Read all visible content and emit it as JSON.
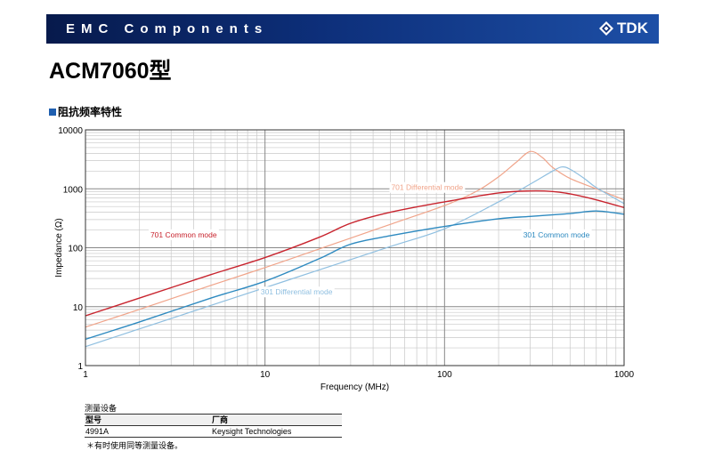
{
  "header": {
    "banner_title": "EMC Components",
    "logo_text": "TDK",
    "logo_icon": "tdk-diamond-logo-icon"
  },
  "page_title": "ACM7060型",
  "section_title": "阻抗频率特性",
  "colors": {
    "banner": "#0d2f7a",
    "701_common": "#c8242e",
    "701_differential": "#f0a48a",
    "301_common": "#2e8ac0",
    "301_differential": "#8fbfe0"
  },
  "chart_data": {
    "type": "line",
    "xlabel": "Frequency (MHz)",
    "ylabel": "Impedance (Ω)",
    "xscale": "log",
    "yscale": "log",
    "xlim": [
      1,
      1000
    ],
    "ylim": [
      1,
      10000
    ],
    "grid": true,
    "x_ticks": [
      "1",
      "10",
      "100",
      "1000"
    ],
    "y_ticks": [
      "1",
      "10",
      "100",
      "1000",
      "10000"
    ],
    "series": [
      {
        "name": "701 Common mode",
        "color": "#c8242e",
        "x": [
          1,
          2,
          5,
          10,
          20,
          30,
          50,
          100,
          200,
          300,
          400,
          500,
          700,
          1000
        ],
        "y": [
          7,
          14,
          35,
          68,
          150,
          260,
          400,
          600,
          850,
          920,
          900,
          820,
          650,
          480
        ]
      },
      {
        "name": "701 Differential mode",
        "color": "#f0a48a",
        "x": [
          1,
          2,
          5,
          10,
          20,
          50,
          100,
          150,
          200,
          250,
          300,
          350,
          400,
          500,
          700,
          1000
        ],
        "y": [
          4.5,
          9,
          23,
          46,
          95,
          250,
          520,
          900,
          1600,
          2800,
          4300,
          3400,
          2300,
          1500,
          1000,
          650
        ]
      },
      {
        "name": "301 Common mode",
        "color": "#2e8ac0",
        "x": [
          1,
          2,
          5,
          10,
          20,
          30,
          50,
          100,
          200,
          300,
          500,
          700,
          1000
        ],
        "y": [
          2.8,
          5.5,
          14,
          27,
          65,
          115,
          160,
          230,
          310,
          340,
          380,
          420,
          370
        ]
      },
      {
        "name": "301 Differential mode",
        "color": "#8fbfe0",
        "x": [
          1,
          2,
          5,
          10,
          20,
          50,
          100,
          200,
          300,
          400,
          450,
          500,
          600,
          700,
          1000
        ],
        "y": [
          2.1,
          4.2,
          10.5,
          21,
          42,
          105,
          210,
          600,
          1200,
          2000,
          2350,
          2150,
          1500,
          1050,
          560
        ]
      }
    ]
  },
  "equipment": {
    "title": "测量设备",
    "headers": [
      "型号",
      "厂商"
    ],
    "rows": [
      [
        "4991A",
        "Keysight Technologies"
      ]
    ],
    "note": "＊有时使用同等测量设备。"
  }
}
